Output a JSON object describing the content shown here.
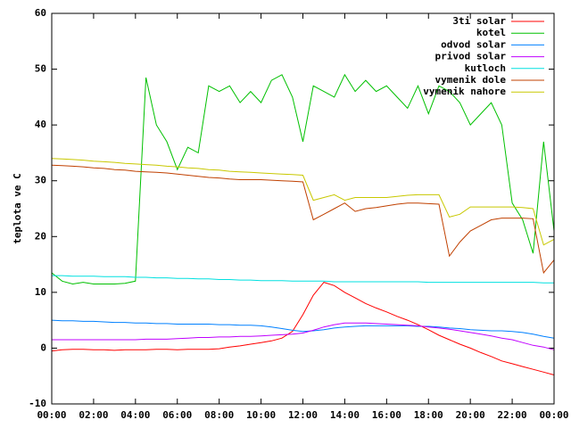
{
  "chart_data": {
    "type": "line",
    "y_label": "teplota ve C",
    "x": [
      0,
      0.5,
      1,
      1.5,
      2,
      2.5,
      3,
      3.5,
      4,
      4.5,
      5,
      5.5,
      6,
      6.5,
      7,
      7.5,
      8,
      8.5,
      9,
      9.5,
      10,
      10.5,
      11,
      11.5,
      12,
      12.5,
      13,
      13.5,
      14,
      14.5,
      15,
      15.5,
      16,
      16.5,
      17,
      17.5,
      18,
      18.5,
      19,
      19.5,
      20,
      20.5,
      21,
      21.5,
      22,
      22.5,
      23,
      23.5,
      24
    ],
    "xlim": [
      0,
      24
    ],
    "xticks": [
      {
        "value": 0,
        "label": "00:00"
      },
      {
        "value": 2,
        "label": "02:00"
      },
      {
        "value": 4,
        "label": "04:00"
      },
      {
        "value": 6,
        "label": "06:00"
      },
      {
        "value": 8,
        "label": "08:00"
      },
      {
        "value": 10,
        "label": "10:00"
      },
      {
        "value": 12,
        "label": "12:00"
      },
      {
        "value": 14,
        "label": "14:00"
      },
      {
        "value": 16,
        "label": "16:00"
      },
      {
        "value": 18,
        "label": "18:00"
      },
      {
        "value": 20,
        "label": "20:00"
      },
      {
        "value": 22,
        "label": "22:00"
      },
      {
        "value": 24,
        "label": "00:00"
      }
    ],
    "ylim": [
      -10,
      60
    ],
    "yticks": [
      -10,
      0,
      10,
      20,
      30,
      40,
      50,
      60
    ],
    "grid": false,
    "legend": "top-right",
    "series": [
      {
        "name": "3ti solar",
        "color": "#ff0000",
        "values": [
          -0.5,
          -0.3,
          -0.2,
          -0.2,
          -0.3,
          -0.3,
          -0.4,
          -0.3,
          -0.3,
          -0.3,
          -0.2,
          -0.2,
          -0.3,
          -0.2,
          -0.2,
          -0.2,
          -0.1,
          0.2,
          0.4,
          0.7,
          1,
          1.3,
          1.8,
          3,
          6,
          9.5,
          11.8,
          11.2,
          10,
          9,
          8,
          7.2,
          6.5,
          5.7,
          5,
          4.2,
          3.3,
          2.3,
          1.5,
          0.7,
          0,
          -0.8,
          -1.5,
          -2.3,
          -2.8,
          -3.3,
          -3.8,
          -4.3,
          -4.8
        ]
      },
      {
        "name": "kotel",
        "color": "#00c000",
        "values": [
          13.5,
          12,
          11.5,
          11.8,
          11.5,
          11.5,
          11.5,
          11.6,
          12,
          48.5,
          40,
          37,
          32,
          36,
          35,
          47,
          46,
          47,
          44,
          46,
          44,
          48,
          49,
          45,
          37,
          47,
          46,
          45,
          49,
          46,
          48,
          46,
          47,
          45,
          43,
          47,
          42,
          47,
          46,
          44,
          40,
          42,
          44,
          40,
          26,
          23,
          17,
          37,
          21
        ]
      },
      {
        "name": "odvod solar",
        "color": "#0080ff",
        "values": [
          5,
          4.9,
          4.9,
          4.8,
          4.8,
          4.7,
          4.6,
          4.6,
          4.5,
          4.5,
          4.4,
          4.4,
          4.3,
          4.3,
          4.3,
          4.3,
          4.2,
          4.2,
          4.1,
          4.1,
          4,
          3.8,
          3.5,
          3.2,
          3,
          3.1,
          3.3,
          3.6,
          3.8,
          3.9,
          4,
          4,
          4,
          4,
          4,
          3.9,
          3.9,
          3.8,
          3.6,
          3.5,
          3.3,
          3.2,
          3.1,
          3.1,
          3,
          2.8,
          2.5,
          2.1,
          1.8
        ]
      },
      {
        "name": "privod solar",
        "color": "#c000ff",
        "values": [
          1.5,
          1.5,
          1.5,
          1.5,
          1.5,
          1.5,
          1.5,
          1.5,
          1.5,
          1.6,
          1.6,
          1.6,
          1.7,
          1.8,
          1.9,
          1.9,
          2,
          2,
          2.1,
          2.1,
          2.2,
          2.3,
          2.4,
          2.5,
          2.7,
          3.2,
          3.8,
          4.2,
          4.5,
          4.5,
          4.5,
          4.4,
          4.3,
          4.2,
          4.1,
          4,
          3.8,
          3.6,
          3.4,
          3.1,
          2.8,
          2.5,
          2.2,
          1.8,
          1.5,
          1,
          0.5,
          0.2,
          -0.3
        ]
      },
      {
        "name": "kutloch",
        "color": "#00e0e0",
        "values": [
          13,
          13,
          12.9,
          12.9,
          12.9,
          12.8,
          12.8,
          12.8,
          12.7,
          12.7,
          12.6,
          12.6,
          12.5,
          12.5,
          12.4,
          12.4,
          12.3,
          12.3,
          12.2,
          12.2,
          12.1,
          12.1,
          12.1,
          12,
          12,
          12,
          12,
          11.9,
          11.9,
          11.9,
          11.9,
          11.9,
          11.9,
          11.9,
          11.9,
          11.9,
          11.8,
          11.8,
          11.8,
          11.8,
          11.8,
          11.8,
          11.8,
          11.8,
          11.8,
          11.8,
          11.8,
          11.7,
          11.7
        ]
      },
      {
        "name": "vymenik dole",
        "color": "#c04000",
        "values": [
          32.8,
          32.7,
          32.6,
          32.5,
          32.3,
          32.2,
          32,
          31.9,
          31.7,
          31.6,
          31.5,
          31.4,
          31.2,
          31,
          30.8,
          30.6,
          30.5,
          30.3,
          30.2,
          30.2,
          30.2,
          30.1,
          30,
          29.9,
          29.8,
          23,
          24,
          25,
          26,
          24.5,
          25,
          25.2,
          25.5,
          25.8,
          26,
          26,
          25.9,
          25.8,
          16.5,
          19,
          21,
          22,
          23,
          23.3,
          23.3,
          23.3,
          23.2,
          13.5,
          15.8
        ]
      },
      {
        "name": "vymenik nahore",
        "color": "#c8c800",
        "values": [
          34,
          33.9,
          33.8,
          33.7,
          33.5,
          33.4,
          33.3,
          33.1,
          33,
          32.9,
          32.8,
          32.6,
          32.5,
          32.3,
          32.2,
          32,
          31.9,
          31.7,
          31.6,
          31.5,
          31.4,
          31.3,
          31.2,
          31.1,
          31,
          26.5,
          27,
          27.5,
          26.5,
          27,
          27,
          27,
          27,
          27.2,
          27.4,
          27.5,
          27.5,
          27.5,
          23.5,
          24,
          25.3,
          25.3,
          25.3,
          25.3,
          25.3,
          25.2,
          25,
          18.5,
          19.5
        ]
      }
    ]
  }
}
